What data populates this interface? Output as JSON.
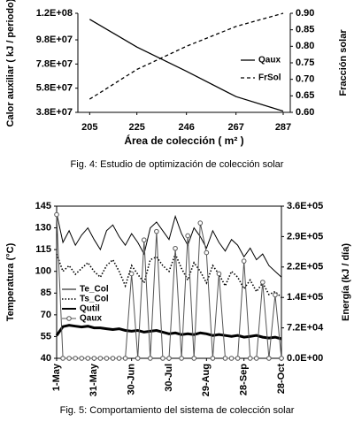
{
  "chart_data": [
    {
      "type": "line",
      "caption": "Fig. 4: Estudio de optimización de colección solar",
      "x_label": "Área de colección ( m² )",
      "y_label": "Calor auxiliar  ( kJ / periodo)",
      "y2_label": "Fracción solar",
      "x": [
        205,
        225,
        246,
        267,
        287
      ],
      "xlim": [
        200,
        290
      ],
      "xticks": [
        205,
        225,
        246,
        267,
        287
      ],
      "ylim": [
        38000000,
        120000000
      ],
      "yticks": [
        {
          "value": 38000000,
          "label": "3.8E+07"
        },
        {
          "value": 58000000,
          "label": "5.8E+07"
        },
        {
          "value": 78000000,
          "label": "7.8E+07"
        },
        {
          "value": 98000000,
          "label": "9.8E+07"
        },
        {
          "value": 120000000,
          "label": "1.2E+08"
        }
      ],
      "y2lim": [
        0.6,
        0.9
      ],
      "y2ticks": [
        {
          "value": 0.6,
          "label": "0.60"
        },
        {
          "value": 0.65,
          "label": "0.65"
        },
        {
          "value": 0.7,
          "label": "0.70"
        },
        {
          "value": 0.75,
          "label": "0.75"
        },
        {
          "value": 0.8,
          "label": "0.80"
        },
        {
          "value": 0.85,
          "label": "0.85"
        },
        {
          "value": 0.9,
          "label": "0.90"
        }
      ],
      "legend": "right",
      "series": [
        {
          "name": "Qaux",
          "color": "#000000",
          "dash": "solid",
          "width": 1.3,
          "values": [
            115000000,
            92000000,
            72000000,
            51000000,
            39000000
          ]
        },
        {
          "name": "FrSol",
          "color": "#000000",
          "dash": "dashed",
          "width": 1.3,
          "axis": "y2",
          "values": [
            0.64,
            0.73,
            0.8,
            0.86,
            0.9
          ]
        }
      ]
    },
    {
      "type": "line",
      "caption": "Fig. 5: Comportamiento del sistema de colección solar",
      "y_label": "Temperatura (°C)",
      "y2_label": "Energía  (kJ / día)",
      "categories": [
        "1-May",
        null,
        null,
        null,
        null,
        null,
        "31-May",
        null,
        null,
        null,
        null,
        null,
        "30-Jun",
        null,
        null,
        null,
        null,
        null,
        "30-Jul",
        null,
        null,
        null,
        null,
        null,
        "29-Aug",
        null,
        null,
        null,
        null,
        null,
        "28-Sep",
        null,
        null,
        null,
        null,
        null,
        "28-Oct"
      ],
      "ylim": [
        40,
        145
      ],
      "yticks": [
        40,
        55,
        70,
        85,
        100,
        115,
        130,
        145
      ],
      "y2lim": [
        0,
        360000
      ],
      "y2ticks": [
        {
          "value": 0,
          "label": "0.0E+00"
        },
        {
          "value": 72000,
          "label": "7.2E+04"
        },
        {
          "value": 144000,
          "label": "1.4E+05"
        },
        {
          "value": 216000,
          "label": "2.2E+05"
        },
        {
          "value": 288000,
          "label": "2.9E+05"
        },
        {
          "value": 360000,
          "label": "3.6E+05"
        }
      ],
      "legend": "left",
      "series": [
        {
          "name": "Te_Col",
          "color": "#000000",
          "dash": "solid",
          "width": 1,
          "values": [
            140,
            120,
            128,
            118,
            125,
            130,
            122,
            115,
            128,
            132,
            124,
            118,
            126,
            120,
            112,
            130,
            134,
            128,
            122,
            138,
            126,
            118,
            130,
            124,
            116,
            128,
            120,
            114,
            122,
            118,
            110,
            116,
            108,
            112,
            104,
            100,
            96
          ]
        },
        {
          "name": "Ts_Col",
          "color": "#000000",
          "dash": "dotted",
          "width": 1.6,
          "values": [
            112,
            100,
            104,
            98,
            102,
            106,
            100,
            96,
            104,
            108,
            100,
            90,
            104,
            98,
            92,
            108,
            110,
            104,
            100,
            112,
            102,
            94,
            106,
            100,
            92,
            104,
            98,
            90,
            100,
            96,
            88,
            94,
            86,
            92,
            84,
            86,
            82
          ]
        },
        {
          "name": "Qutil",
          "color": "#000000",
          "dash": "solid",
          "width": 3,
          "axis": "y2",
          "values": [
            54000,
            75000,
            78000,
            76000,
            74000,
            76000,
            72000,
            72000,
            70000,
            68000,
            70000,
            66000,
            64000,
            66000,
            62000,
            64000,
            66000,
            62000,
            58000,
            60000,
            56000,
            58000,
            56000,
            60000,
            58000,
            54000,
            56000,
            54000,
            52000,
            54000,
            50000,
            52000,
            54000,
            50000,
            48000,
            50000,
            46000
          ]
        },
        {
          "name": "Qaux",
          "color": "#555555",
          "dash": "solid",
          "width": 1,
          "axis": "y2",
          "marker": "circle",
          "values": [
            340000,
            0,
            0,
            0,
            0,
            0,
            0,
            0,
            0,
            0,
            0,
            0,
            200000,
            0,
            280000,
            0,
            300000,
            0,
            0,
            260000,
            0,
            290000,
            0,
            320000,
            250000,
            0,
            200000,
            0,
            0,
            0,
            230000,
            0,
            0,
            180000,
            0,
            150000,
            0
          ]
        }
      ]
    }
  ]
}
